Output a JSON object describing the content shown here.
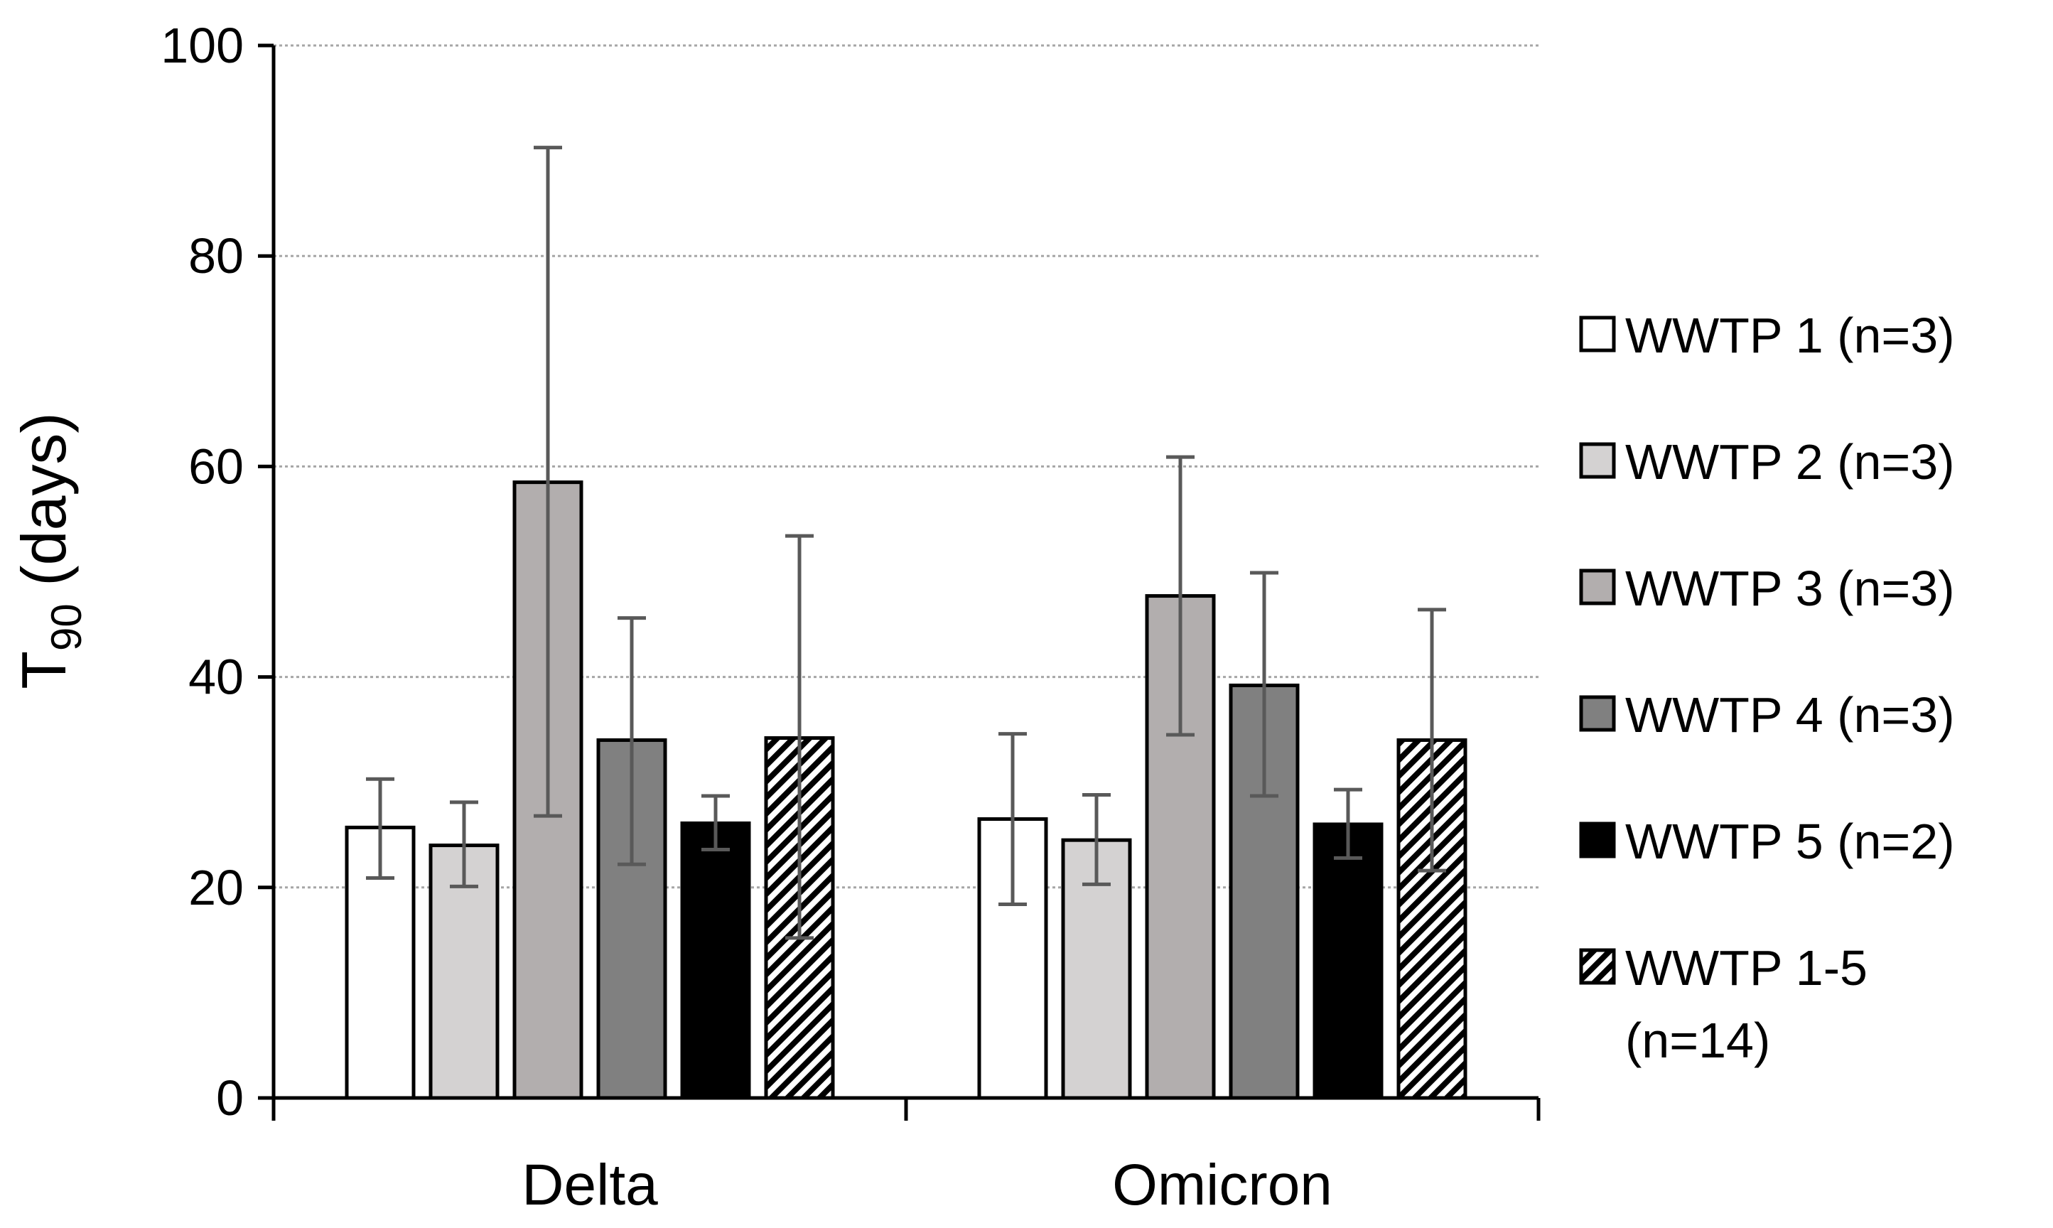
{
  "chart_data": {
    "type": "bar",
    "title": "",
    "categories": [
      "Delta",
      "Omicron"
    ],
    "ylabel": {
      "main": "T",
      "sub": "90",
      "rest": " (days)"
    },
    "ylim": [
      0,
      100
    ],
    "yticks": [
      0,
      20,
      40,
      60,
      80,
      100
    ],
    "grid": true,
    "legend_position": "right",
    "series": [
      {
        "name": "WWTP 1 (n=3)",
        "fill": "#ffffff",
        "pattern": "none",
        "values": [
          25.7,
          26.5
        ],
        "err_low": [
          20.9,
          18.4
        ],
        "err_high": [
          30.3,
          34.6
        ]
      },
      {
        "name": "WWTP 2 (n=3)",
        "fill": "#d4d2d2",
        "pattern": "none",
        "values": [
          24.0,
          24.5
        ],
        "err_low": [
          20.1,
          20.3
        ],
        "err_high": [
          28.1,
          28.8
        ]
      },
      {
        "name": "WWTP 3 (n=3)",
        "fill": "#b2aeae",
        "pattern": "none",
        "values": [
          58.5,
          47.7
        ],
        "err_low": [
          26.8,
          34.5
        ],
        "err_high": [
          90.3,
          60.9
        ]
      },
      {
        "name": "WWTP 4 (n=3)",
        "fill": "#808080",
        "pattern": "none",
        "values": [
          34.0,
          39.2
        ],
        "err_low": [
          22.2,
          28.7
        ],
        "err_high": [
          45.6,
          49.9
        ]
      },
      {
        "name": "WWTP 5 (n=2)",
        "fill": "#000000",
        "pattern": "none",
        "values": [
          26.1,
          26.0
        ],
        "err_low": [
          23.6,
          22.8
        ],
        "err_high": [
          28.7,
          29.3
        ]
      },
      {
        "name": "WWTP 1-5",
        "name_line2": "(n=14)",
        "fill": "#ffffff",
        "pattern": "diagonal-stripes",
        "values": [
          34.2,
          34.0
        ],
        "err_low": [
          15.2,
          21.6
        ],
        "err_high": [
          53.4,
          46.4
        ]
      }
    ]
  }
}
